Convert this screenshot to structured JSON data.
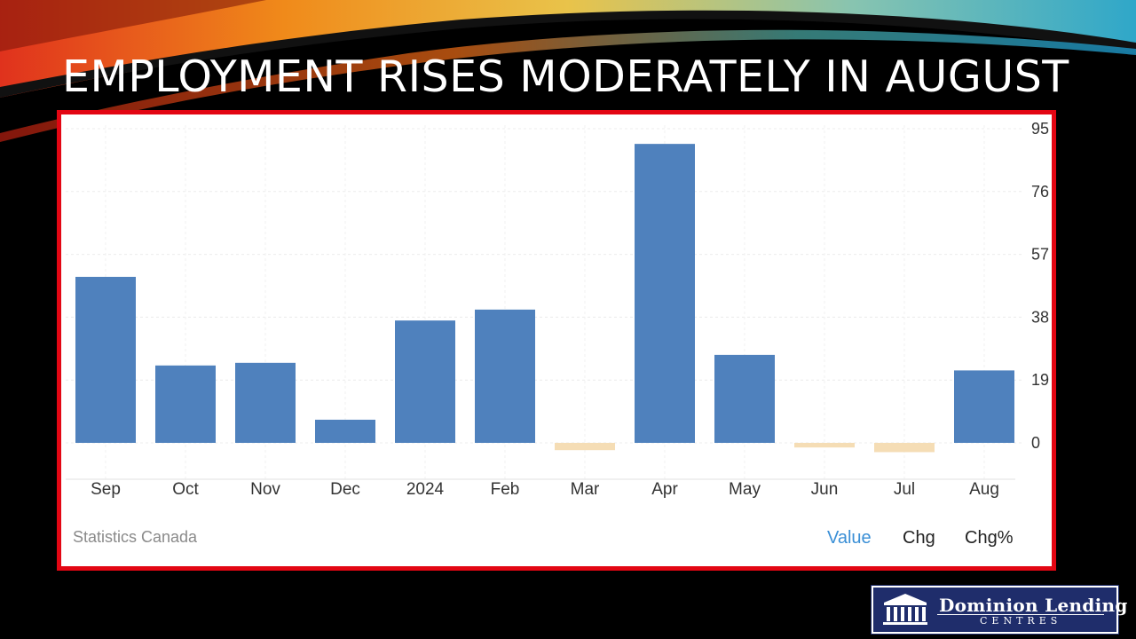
{
  "slide": {
    "title": "EMPLOYMENT RISES MODERATELY IN AUGUST"
  },
  "chart_data": {
    "type": "bar",
    "categories": [
      "Sep",
      "Oct",
      "Nov",
      "Dec",
      "2024",
      "Feb",
      "Mar",
      "Apr",
      "May",
      "Jun",
      "Jul",
      "Aug"
    ],
    "values": [
      50.2,
      23.4,
      24.2,
      7.0,
      37.0,
      40.3,
      -2.2,
      90.4,
      26.6,
      -1.4,
      -2.8,
      21.9
    ],
    "ylim": [
      -11,
      95
    ],
    "yticks": [
      0,
      19,
      38,
      57,
      76,
      95
    ],
    "y_axis_side": "right",
    "grid": true,
    "positive_color": "#4f81bd",
    "negative_color": "#f5ddb5",
    "source": "Statistics Canada",
    "tabs": [
      "Value",
      "Chg",
      "Chg%"
    ],
    "active_tab": "Value"
  },
  "logo": {
    "line1": "Dominion Lending",
    "line2": "CENTRES"
  }
}
